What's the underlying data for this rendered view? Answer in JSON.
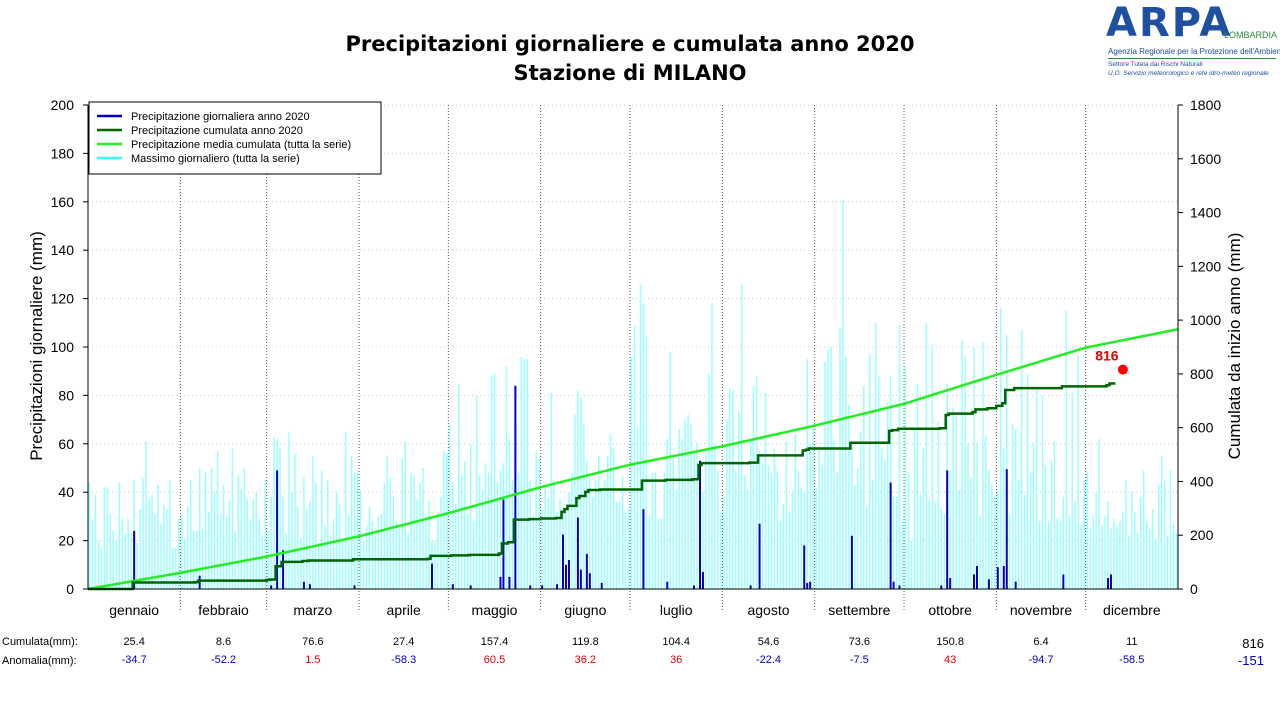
{
  "title_line1": "Precipitazioni giornaliere e cumulata anno 2020",
  "title_line2": "Stazione di MILANO",
  "logo": {
    "brand": "ARPA",
    "brand_sub": "LOMBARDIA",
    "agency": "Agenzia Regionale per la Protezione dell'Ambiente",
    "sector": "Settore Tutela dai Rischi Naturali",
    "unit": "U.O. Servizio meteorologico e rete idro-meteo regionale"
  },
  "colors": {
    "daily_2020": "#0000c8",
    "cumulative_2020": "#006400",
    "mean_cumulative": "#22ee22",
    "daily_max": "#99ffff",
    "end_marker": "#ff0000",
    "negative_anomaly": "#0000c8",
    "positive_anomaly": "#e00000"
  },
  "chart_data": {
    "type": "bar",
    "title": "Precipitazioni giornaliere e cumulata anno 2020",
    "subtitle": "Stazione di MILANO",
    "ylabel": "Precipitazioni giornaliere (mm)",
    "y2label": "Cumulata da inizio anno (mm)",
    "ylim": [
      0,
      200
    ],
    "y2lim": [
      0,
      1800
    ],
    "yticks": [
      0,
      20,
      40,
      60,
      80,
      100,
      120,
      140,
      160,
      180,
      200
    ],
    "y2ticks": [
      0,
      200,
      400,
      600,
      800,
      1000,
      1200,
      1400,
      1600,
      1800
    ],
    "months": [
      "gennaio",
      "febbraio",
      "marzo",
      "aprile",
      "maggio",
      "giugno",
      "luglio",
      "agosto",
      "settembre",
      "ottobre",
      "novembre",
      "dicembre"
    ],
    "month_days": [
      31,
      29,
      31,
      30,
      31,
      30,
      31,
      31,
      30,
      31,
      30,
      31
    ],
    "legend": [
      "Precipitazione giornaliera anno 2020",
      "Precipitazione cumulata anno 2020",
      "Precipitazione media cumulata (tutta la serie)",
      "Massimo giornaliero (tutta la serie)"
    ],
    "legend_position": "top-left",
    "grid": "horizontal dotted",
    "daily_2020": [
      [
        15,
        24
      ],
      [
        37,
        5.5
      ],
      [
        61,
        1.5
      ],
      [
        63,
        49
      ],
      [
        65,
        16
      ],
      [
        72,
        3
      ],
      [
        74,
        2
      ],
      [
        89,
        1.5
      ],
      [
        115,
        10.5
      ],
      [
        122,
        2
      ],
      [
        128,
        1.5
      ],
      [
        138,
        5
      ],
      [
        139,
        37
      ],
      [
        141,
        5
      ],
      [
        143,
        84
      ],
      [
        148,
        1.5
      ],
      [
        152,
        1.5
      ],
      [
        157,
        2
      ],
      [
        159,
        22.5
      ],
      [
        160,
        10
      ],
      [
        161,
        12
      ],
      [
        164,
        29.5
      ],
      [
        165,
        8
      ],
      [
        167,
        14.5
      ],
      [
        168,
        6.5
      ],
      [
        172,
        2.5
      ],
      [
        186,
        33
      ],
      [
        194,
        3
      ],
      [
        203,
        1.5
      ],
      [
        205,
        53
      ],
      [
        206,
        7
      ],
      [
        222,
        1.5
      ],
      [
        225,
        27
      ],
      [
        240,
        18
      ],
      [
        241,
        2.5
      ],
      [
        242,
        3
      ],
      [
        256,
        22
      ],
      [
        269,
        44
      ],
      [
        270,
        3
      ],
      [
        272,
        1.5
      ],
      [
        286,
        1.5
      ],
      [
        288,
        49
      ],
      [
        289,
        4.5
      ],
      [
        297,
        6
      ],
      [
        298,
        9.5
      ],
      [
        302,
        4
      ],
      [
        305,
        9
      ],
      [
        307,
        9.5
      ],
      [
        308,
        49.5
      ],
      [
        311,
        3
      ],
      [
        327,
        6
      ],
      [
        342,
        4.5
      ],
      [
        343,
        6
      ]
    ],
    "cumulative_2020_steps": [
      [
        0,
        0
      ],
      [
        14,
        0
      ],
      [
        15,
        24
      ],
      [
        36,
        25.4
      ],
      [
        37,
        31
      ],
      [
        60,
        34
      ],
      [
        61,
        35.5
      ],
      [
        63,
        84.5
      ],
      [
        65,
        101
      ],
      [
        72,
        104
      ],
      [
        74,
        106
      ],
      [
        89,
        110.6
      ],
      [
        114,
        112
      ],
      [
        115,
        123
      ],
      [
        122,
        125
      ],
      [
        128,
        127
      ],
      [
        138,
        132
      ],
      [
        139,
        169
      ],
      [
        141,
        174
      ],
      [
        143,
        258
      ],
      [
        148,
        260
      ],
      [
        152,
        262
      ],
      [
        157,
        264
      ],
      [
        159,
        287
      ],
      [
        160,
        297
      ],
      [
        161,
        309
      ],
      [
        164,
        338
      ],
      [
        165,
        346
      ],
      [
        167,
        361
      ],
      [
        168,
        368
      ],
      [
        172,
        370
      ],
      [
        186,
        403
      ],
      [
        194,
        406
      ],
      [
        203,
        408
      ],
      [
        205,
        461
      ],
      [
        206,
        468
      ],
      [
        222,
        470
      ],
      [
        225,
        497
      ],
      [
        240,
        515
      ],
      [
        241,
        518
      ],
      [
        242,
        522.6
      ],
      [
        256,
        544
      ],
      [
        269,
        588
      ],
      [
        270,
        591
      ],
      [
        272,
        596.2
      ],
      [
        286,
        598
      ],
      [
        288,
        647
      ],
      [
        289,
        652
      ],
      [
        297,
        658
      ],
      [
        298,
        668
      ],
      [
        302,
        672
      ],
      [
        305,
        681
      ],
      [
        307,
        691
      ],
      [
        308,
        740
      ],
      [
        311,
        747
      ],
      [
        327,
        753.4
      ],
      [
        342,
        758
      ],
      [
        343,
        764.4
      ]
    ],
    "cumulative_2020_end": 816,
    "cumulative_2020_end_day": 345,
    "mean_cumulative": [
      [
        0,
        0
      ],
      [
        31,
        60.1
      ],
      [
        60,
        120.9
      ],
      [
        91,
        196
      ],
      [
        121,
        281.7
      ],
      [
        152,
        378.6
      ],
      [
        182,
        462.2
      ],
      [
        213,
        530.6
      ],
      [
        244,
        607.6
      ],
      [
        274,
        688.7
      ],
      [
        305,
        796.5
      ],
      [
        335,
        897.6
      ],
      [
        366,
        966.1
      ]
    ],
    "daily_max_series": [
      44,
      29,
      39,
      20,
      17,
      42,
      42,
      31,
      24,
      20,
      44,
      29,
      23,
      29,
      23,
      45,
      19,
      33,
      46,
      61,
      37,
      39,
      31,
      43,
      27,
      35,
      33,
      45,
      17,
      17,
      29,
      31,
      21,
      34,
      45,
      24,
      24,
      50,
      25,
      48,
      32,
      50,
      40,
      57,
      31,
      43,
      30,
      37,
      58,
      24,
      47,
      41,
      50,
      37,
      29,
      37,
      40,
      29,
      22,
      45,
      24,
      38,
      63,
      62,
      58,
      38,
      23,
      65,
      40,
      56,
      34,
      21,
      46,
      33,
      36,
      55,
      44,
      19,
      49,
      26,
      45,
      22,
      29,
      40,
      35,
      20,
      65,
      30,
      55,
      48,
      48,
      41,
      20,
      26,
      34,
      28,
      23,
      30,
      31,
      44,
      55,
      46,
      38,
      28,
      25,
      54,
      61,
      23,
      48,
      47,
      37,
      44,
      50,
      31,
      37,
      20,
      20,
      32,
      38,
      57,
      56,
      68,
      44,
      35,
      85,
      47,
      53,
      31,
      60,
      28,
      80,
      47,
      41,
      52,
      48,
      69,
      72,
      44,
      49,
      52,
      92,
      62,
      45,
      67,
      48,
      96,
      31,
      43,
      45,
      30,
      57,
      54,
      33,
      42,
      38,
      81,
      45,
      32,
      37,
      33,
      32,
      40,
      48,
      72,
      56,
      79,
      68,
      53,
      46,
      38,
      45,
      55,
      42,
      45,
      55,
      64,
      58,
      36,
      36,
      47,
      32,
      33,
      85,
      85,
      67,
      33,
      84,
      35,
      30,
      48,
      48,
      29,
      29,
      48,
      62,
      58,
      54,
      41,
      66,
      62,
      70,
      72,
      68,
      56,
      60,
      52,
      40,
      56,
      61,
      48,
      60,
      49,
      32,
      38,
      70,
      49,
      27,
      49,
      73,
      32,
      47,
      41,
      62,
      33,
      51,
      57,
      52,
      60,
      51,
      48,
      58,
      49,
      28,
      35,
      61,
      32,
      40,
      64,
      49,
      42,
      40,
      50,
      60,
      67,
      42,
      59,
      51,
      34,
      47,
      49,
      62,
      48,
      44,
      60,
      44,
      43,
      59,
      43,
      50,
      65,
      35,
      34,
      38,
      45,
      34,
      61,
      58,
      53,
      66,
      47,
      38,
      38,
      34,
      28,
      30,
      48,
      20,
      66,
      27,
      39,
      58,
      47,
      37,
      23,
      36,
      40,
      33,
      31,
      31,
      49,
      48,
      45,
      41,
      40,
      31,
      60,
      46,
      61,
      60,
      30,
      37,
      63,
      49,
      43,
      38,
      41,
      46,
      58,
      63,
      31,
      42,
      66,
      45,
      58,
      39,
      64,
      48,
      60,
      36,
      28,
      43,
      51,
      28,
      53,
      61,
      29,
      28,
      38,
      35,
      30,
      25,
      36,
      31,
      27,
      45,
      48,
      25,
      30,
      40,
      25,
      26,
      30,
      36,
      25,
      29,
      26,
      28,
      32,
      45,
      22,
      40,
      32,
      23,
      38,
      49,
      28,
      25,
      33,
      21,
      43,
      31,
      45,
      22,
      49,
      27,
      23
    ],
    "daily_max_peaks": [
      [
        135,
        88
      ],
      [
        136,
        89
      ],
      [
        146,
        95
      ],
      [
        147,
        95
      ],
      [
        164,
        82
      ],
      [
        182,
        96
      ],
      [
        183,
        109
      ],
      [
        185,
        126
      ],
      [
        186,
        118
      ],
      [
        187,
        104
      ],
      [
        195,
        98
      ],
      [
        208,
        89
      ],
      [
        209,
        118
      ],
      [
        215,
        83
      ],
      [
        216,
        82
      ],
      [
        219,
        126
      ],
      [
        223,
        84
      ],
      [
        224,
        88
      ],
      [
        227,
        81
      ],
      [
        241,
        95
      ],
      [
        247,
        94
      ],
      [
        248,
        99
      ],
      [
        249,
        100
      ],
      [
        252,
        108
      ],
      [
        253,
        161
      ],
      [
        254,
        96
      ],
      [
        255,
        76
      ],
      [
        260,
        84
      ],
      [
        262,
        97
      ],
      [
        264,
        110
      ],
      [
        265,
        88
      ],
      [
        268,
        77
      ],
      [
        269,
        88
      ],
      [
        272,
        109
      ],
      [
        274,
        92
      ],
      [
        278,
        85
      ],
      [
        281,
        110
      ],
      [
        283,
        101
      ],
      [
        285,
        69
      ],
      [
        288,
        85
      ],
      [
        290,
        75
      ],
      [
        291,
        72
      ],
      [
        293,
        103
      ],
      [
        294,
        96
      ],
      [
        297,
        100
      ],
      [
        300,
        102
      ],
      [
        306,
        116
      ],
      [
        308,
        105
      ],
      [
        310,
        68
      ],
      [
        313,
        107
      ],
      [
        315,
        89
      ],
      [
        318,
        83
      ],
      [
        320,
        80
      ],
      [
        328,
        115
      ],
      [
        330,
        81
      ],
      [
        332,
        97
      ],
      [
        339,
        62
      ],
      [
        360,
        55
      ]
    ],
    "monthly_cumulated": [
      "25.4",
      "8.6",
      "76.6",
      "27.4",
      "157.4",
      "119.8",
      "104.4",
      "54.6",
      "73.6",
      "150.8",
      "6.4",
      "11"
    ],
    "monthly_anomaly": [
      "-34.7",
      "-52.2",
      "1.5",
      "-58.3",
      "60.5",
      "36.2",
      "36",
      "-22.4",
      "-7.5",
      "43",
      "-94.7",
      "-58.5"
    ]
  },
  "table": {
    "cumulata_label": "Cumulata(mm):",
    "anomalia_label": "Anomalia(mm):",
    "total_cumulata": "816",
    "total_anomalia": "-151"
  },
  "end_label": "816"
}
